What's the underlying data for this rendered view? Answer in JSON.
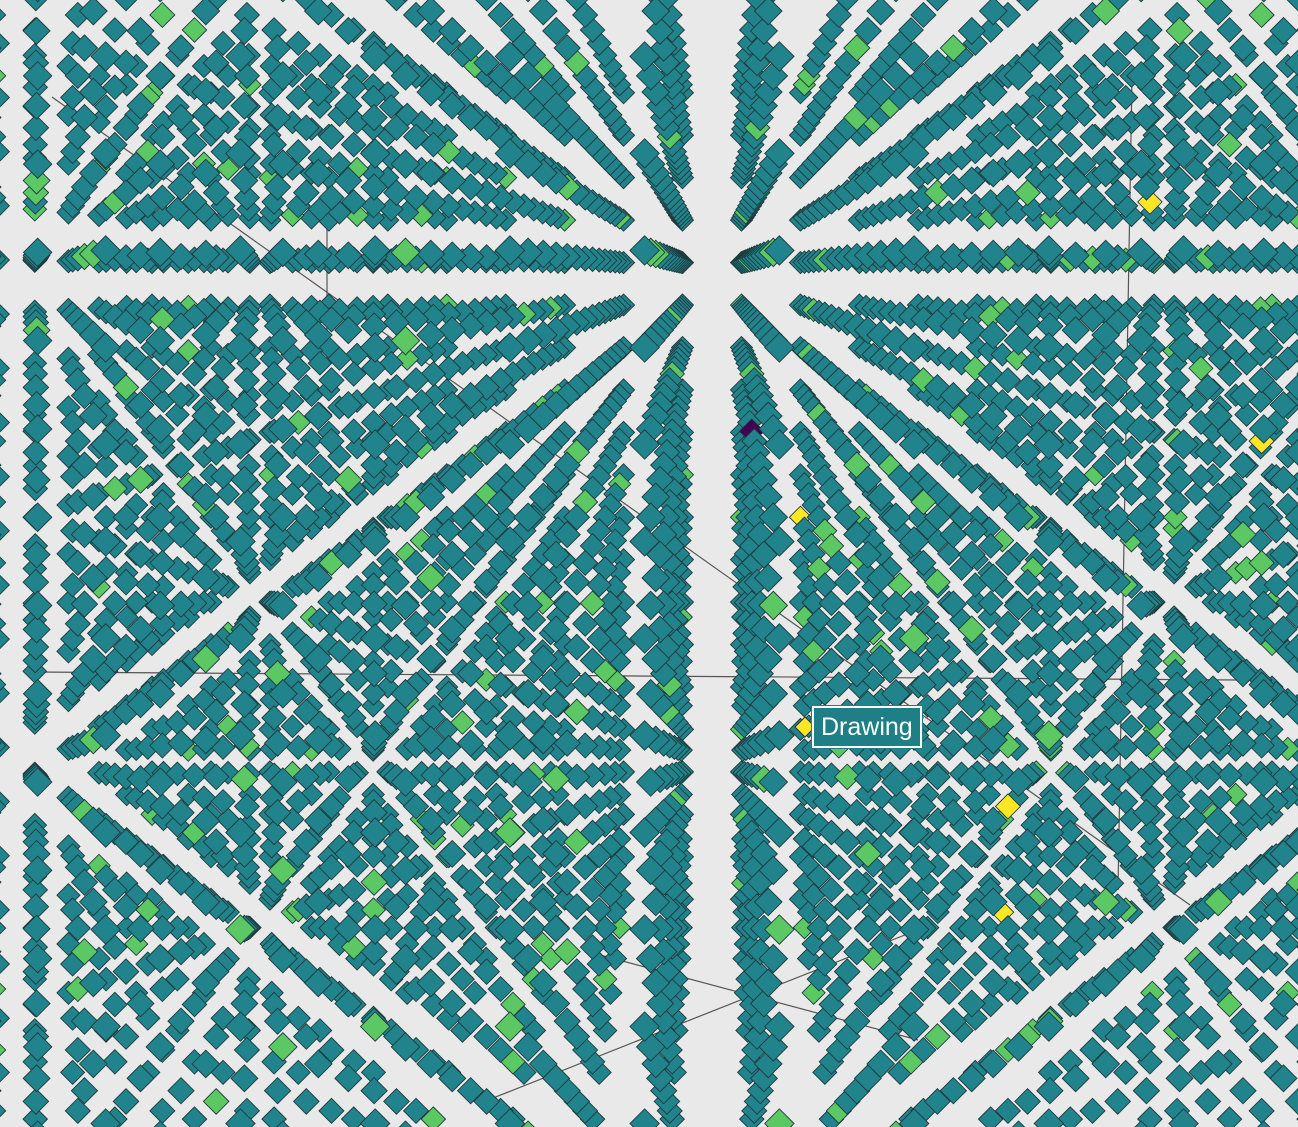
{
  "tooltip": {
    "label": "Drawing"
  }
}
